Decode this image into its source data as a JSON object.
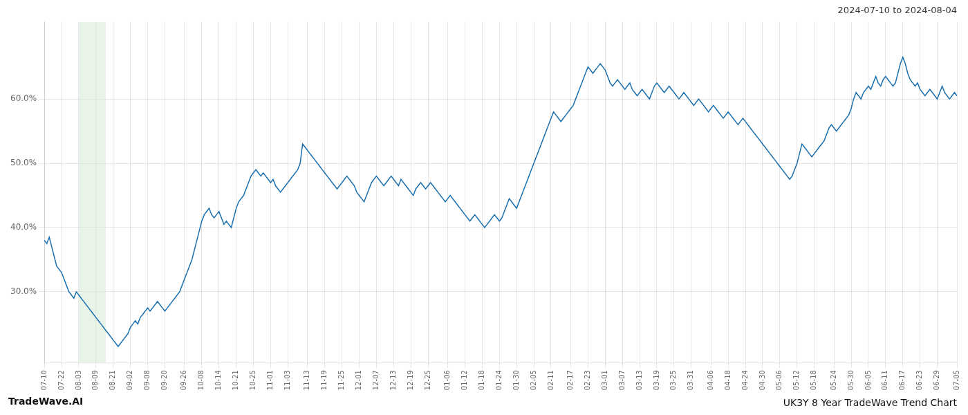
{
  "chart_data": {
    "type": "line",
    "title": "UK3Y 8 Year TradeWave Trend Chart",
    "subtitle": "2024-07-10 to 2024-08-04",
    "annotation": "TradeWave.AI",
    "color": "#1a6faf",
    "grid": true,
    "ylim": [
      19.0,
      72.0
    ],
    "yticks": [
      {
        "value": 30,
        "label": "30.0%"
      },
      {
        "value": 40,
        "label": "40.0%"
      },
      {
        "value": 50,
        "label": "50.0%"
      },
      {
        "value": 60,
        "label": "60.0%"
      }
    ],
    "shade": {
      "start": 14,
      "end": 25,
      "color": "#d5ebd5"
    },
    "categories": [
      "07-10",
      null,
      null,
      null,
      null,
      null,
      null,
      "07-22",
      null,
      null,
      null,
      null,
      null,
      null,
      "08-03",
      null,
      null,
      null,
      null,
      null,
      null,
      "08-09",
      null,
      null,
      null,
      null,
      null,
      null,
      "08-21",
      null,
      null,
      null,
      null,
      null,
      null,
      "09-02",
      null,
      null,
      null,
      null,
      null,
      null,
      "09-08",
      null,
      null,
      null,
      null,
      null,
      null,
      "09-20",
      null,
      null,
      null,
      null,
      null,
      null,
      null,
      "09-26",
      null,
      null,
      null,
      null,
      null,
      null,
      "10-08",
      null,
      null,
      null,
      null,
      null,
      null,
      "10-14",
      null,
      null,
      null,
      null,
      null,
      null,
      "10-21",
      null,
      null,
      null,
      null,
      null,
      null,
      "10-25",
      null,
      null,
      null,
      null,
      null,
      null,
      "11-01",
      null,
      null,
      null,
      null,
      null,
      null,
      "11-03",
      null,
      null,
      null,
      null,
      null,
      null,
      null,
      "11-13",
      null,
      null,
      null,
      null,
      null,
      null,
      "11-19",
      null,
      null,
      null,
      null,
      null,
      null,
      "11-25",
      null,
      null,
      null,
      null,
      null,
      null,
      "12-01",
      null,
      null,
      null,
      null,
      null,
      null,
      "12-07",
      null,
      null,
      null,
      null,
      null,
      null,
      "12-13",
      null,
      null,
      null,
      null,
      null,
      null,
      "12-19",
      null,
      null,
      null,
      null,
      null,
      null,
      "12-25",
      null,
      null,
      null,
      null,
      null,
      null,
      null,
      "01-06",
      null,
      null,
      null,
      null,
      null,
      null,
      "01-12",
      null,
      null,
      null,
      null,
      null,
      null,
      "01-18",
      null,
      null,
      null,
      null,
      null,
      null,
      "01-24",
      null,
      null,
      null,
      null,
      null,
      null,
      "01-30",
      null,
      null,
      null,
      null,
      null,
      null,
      "02-05",
      null,
      null,
      null,
      null,
      null,
      null,
      "02-11",
      null,
      null,
      null,
      null,
      null,
      null,
      null,
      "02-17",
      null,
      null,
      null,
      null,
      null,
      null,
      "02-23",
      null,
      null,
      null,
      null,
      null,
      null,
      "03-01",
      null,
      null,
      null,
      null,
      null,
      null,
      "03-07",
      null,
      null,
      null,
      null,
      null,
      null,
      "03-13",
      null,
      null,
      null,
      null,
      null,
      null,
      "03-19",
      null,
      null,
      null,
      null,
      null,
      null,
      "03-25",
      null,
      null,
      null,
      null,
      null,
      null,
      "03-31",
      null,
      null,
      null,
      null,
      null,
      null,
      null,
      "04-06",
      null,
      null,
      null,
      null,
      null,
      null,
      "04-18",
      null,
      null,
      null,
      null,
      null,
      null,
      "04-24",
      null,
      null,
      null,
      null,
      null,
      null,
      "04-30",
      null,
      null,
      null,
      null,
      null,
      null,
      "05-06",
      null,
      null,
      null,
      null,
      null,
      null,
      "05-12",
      null,
      null,
      null,
      null,
      null,
      null,
      "05-18",
      null,
      null,
      null,
      null,
      null,
      null,
      null,
      "05-24",
      null,
      null,
      null,
      null,
      null,
      null,
      "05-30",
      null,
      null,
      null,
      null,
      null,
      null,
      "06-05",
      null,
      null,
      null,
      null,
      null,
      null,
      "06-11",
      null,
      null,
      null,
      null,
      null,
      null,
      "06-17",
      null,
      null,
      null,
      null,
      null,
      null,
      "06-23",
      null,
      null,
      null,
      null,
      null,
      null,
      "06-29",
      null,
      null,
      null,
      null,
      null,
      null,
      null,
      "07-05"
    ],
    "values": [
      38.0,
      37.5,
      38.5,
      37.0,
      35.5,
      34.0,
      33.5,
      33.0,
      32.0,
      31.0,
      30.0,
      29.5,
      29.0,
      30.0,
      29.5,
      29.0,
      28.5,
      28.0,
      27.5,
      27.0,
      26.5,
      26.0,
      25.5,
      25.0,
      24.5,
      24.0,
      23.5,
      23.0,
      22.5,
      22.0,
      21.5,
      22.0,
      22.5,
      23.0,
      23.5,
      24.5,
      25.0,
      25.5,
      25.0,
      26.0,
      26.5,
      27.0,
      27.5,
      27.0,
      27.5,
      28.0,
      28.5,
      28.0,
      27.5,
      27.0,
      27.5,
      28.0,
      28.5,
      29.0,
      29.5,
      30.0,
      31.0,
      32.0,
      33.0,
      34.0,
      35.0,
      36.5,
      38.0,
      39.5,
      41.0,
      42.0,
      42.5,
      43.0,
      42.0,
      41.5,
      42.0,
      42.5,
      41.5,
      40.5,
      41.0,
      40.5,
      40.0,
      41.5,
      43.0,
      44.0,
      44.5,
      45.0,
      46.0,
      47.0,
      48.0,
      48.5,
      49.0,
      48.5,
      48.0,
      48.5,
      48.0,
      47.5,
      47.0,
      47.5,
      46.5,
      46.0,
      45.5,
      46.0,
      46.5,
      47.0,
      47.5,
      48.0,
      48.5,
      49.0,
      50.0,
      53.0,
      52.5,
      52.0,
      51.5,
      51.0,
      50.5,
      50.0,
      49.5,
      49.0,
      48.5,
      48.0,
      47.5,
      47.0,
      46.5,
      46.0,
      46.5,
      47.0,
      47.5,
      48.0,
      47.5,
      47.0,
      46.5,
      45.5,
      45.0,
      44.5,
      44.0,
      45.0,
      46.0,
      47.0,
      47.5,
      48.0,
      47.5,
      47.0,
      46.5,
      47.0,
      47.5,
      48.0,
      47.5,
      47.0,
      46.5,
      47.5,
      47.0,
      46.5,
      46.0,
      45.5,
      45.0,
      46.0,
      46.5,
      47.0,
      46.5,
      46.0,
      46.5,
      47.0,
      46.5,
      46.0,
      45.5,
      45.0,
      44.5,
      44.0,
      44.5,
      45.0,
      44.5,
      44.0,
      43.5,
      43.0,
      42.5,
      42.0,
      41.5,
      41.0,
      41.5,
      42.0,
      41.5,
      41.0,
      40.5,
      40.0,
      40.5,
      41.0,
      41.5,
      42.0,
      41.5,
      41.0,
      41.5,
      42.5,
      43.5,
      44.5,
      44.0,
      43.5,
      43.0,
      44.0,
      45.0,
      46.0,
      47.0,
      48.0,
      49.0,
      50.0,
      51.0,
      52.0,
      53.0,
      54.0,
      55.0,
      56.0,
      57.0,
      58.0,
      57.5,
      57.0,
      56.5,
      57.0,
      57.5,
      58.0,
      58.5,
      59.0,
      60.0,
      61.0,
      62.0,
      63.0,
      64.0,
      65.0,
      64.5,
      64.0,
      64.5,
      65.0,
      65.5,
      65.0,
      64.5,
      63.5,
      62.5,
      62.0,
      62.5,
      63.0,
      62.5,
      62.0,
      61.5,
      62.0,
      62.5,
      61.5,
      61.0,
      60.5,
      61.0,
      61.5,
      61.0,
      60.5,
      60.0,
      61.0,
      62.0,
      62.5,
      62.0,
      61.5,
      61.0,
      61.5,
      62.0,
      61.5,
      61.0,
      60.5,
      60.0,
      60.5,
      61.0,
      60.5,
      60.0,
      59.5,
      59.0,
      59.5,
      60.0,
      59.5,
      59.0,
      58.5,
      58.0,
      58.5,
      59.0,
      58.5,
      58.0,
      57.5,
      57.0,
      57.5,
      58.0,
      57.5,
      57.0,
      56.5,
      56.0,
      56.5,
      57.0,
      56.5,
      56.0,
      55.5,
      55.0,
      54.5,
      54.0,
      53.5,
      53.0,
      52.5,
      52.0,
      51.5,
      51.0,
      50.5,
      50.0,
      49.5,
      49.0,
      48.5,
      48.0,
      47.5,
      48.0,
      49.0,
      50.0,
      51.5,
      53.0,
      52.5,
      52.0,
      51.5,
      51.0,
      51.5,
      52.0,
      52.5,
      53.0,
      53.5,
      54.5,
      55.5,
      56.0,
      55.5,
      55.0,
      55.5,
      56.0,
      56.5,
      57.0,
      57.5,
      58.5,
      60.0,
      61.0,
      60.5,
      60.0,
      61.0,
      61.5,
      62.0,
      61.5,
      62.5,
      63.5,
      62.5,
      62.0,
      63.0,
      63.5,
      63.0,
      62.5,
      62.0,
      62.5,
      64.0,
      65.5,
      66.5,
      65.5,
      64.0,
      63.0,
      62.5,
      62.0,
      62.5,
      61.5,
      61.0,
      60.5,
      61.0,
      61.5,
      61.0,
      60.5,
      60.0,
      61.0,
      62.0,
      61.0,
      60.5,
      60.0,
      60.5,
      61.0,
      60.5
    ]
  }
}
